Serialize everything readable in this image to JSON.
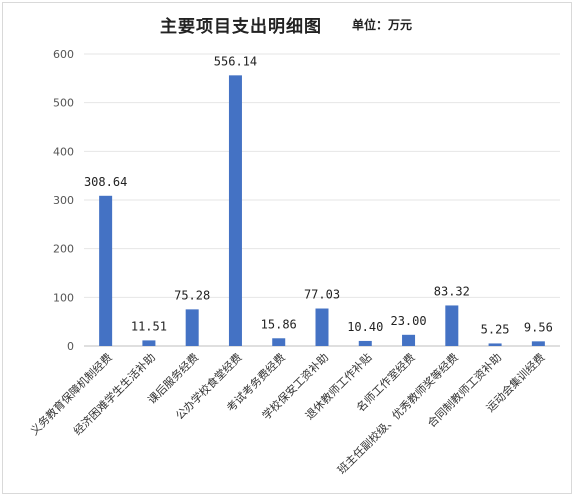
{
  "chart_data": {
    "type": "bar",
    "title": "主要项目支出明细图",
    "unit_label": "单位：万元",
    "categories": [
      "义务教育保障机制经费",
      "经济困难学生生活补助",
      "课后服务经费",
      "公办学校食堂经费",
      "考试考务费经费",
      "学校保安工资补助",
      "退休教师工作补贴",
      "名师工作室经费",
      "班主任副校级、优秀教师奖等经费",
      "合同制教师工资补助",
      "运动会集训经费"
    ],
    "values": [
      308.64,
      11.51,
      75.28,
      556.14,
      15.86,
      77.03,
      10.4,
      23.0,
      83.32,
      5.25,
      9.56
    ],
    "value_labels": [
      "308.64",
      "11.51",
      "75.28",
      "556.14",
      "15.86",
      "77.03",
      "10.40",
      "23.00",
      "83.32",
      "5.25",
      "9.56"
    ],
    "yticks": [
      "0",
      "100",
      "200",
      "300",
      "400",
      "500",
      "600"
    ],
    "ylim": [
      0,
      600
    ],
    "bar_color": "#4472c4",
    "grid": true,
    "legend": false
  }
}
